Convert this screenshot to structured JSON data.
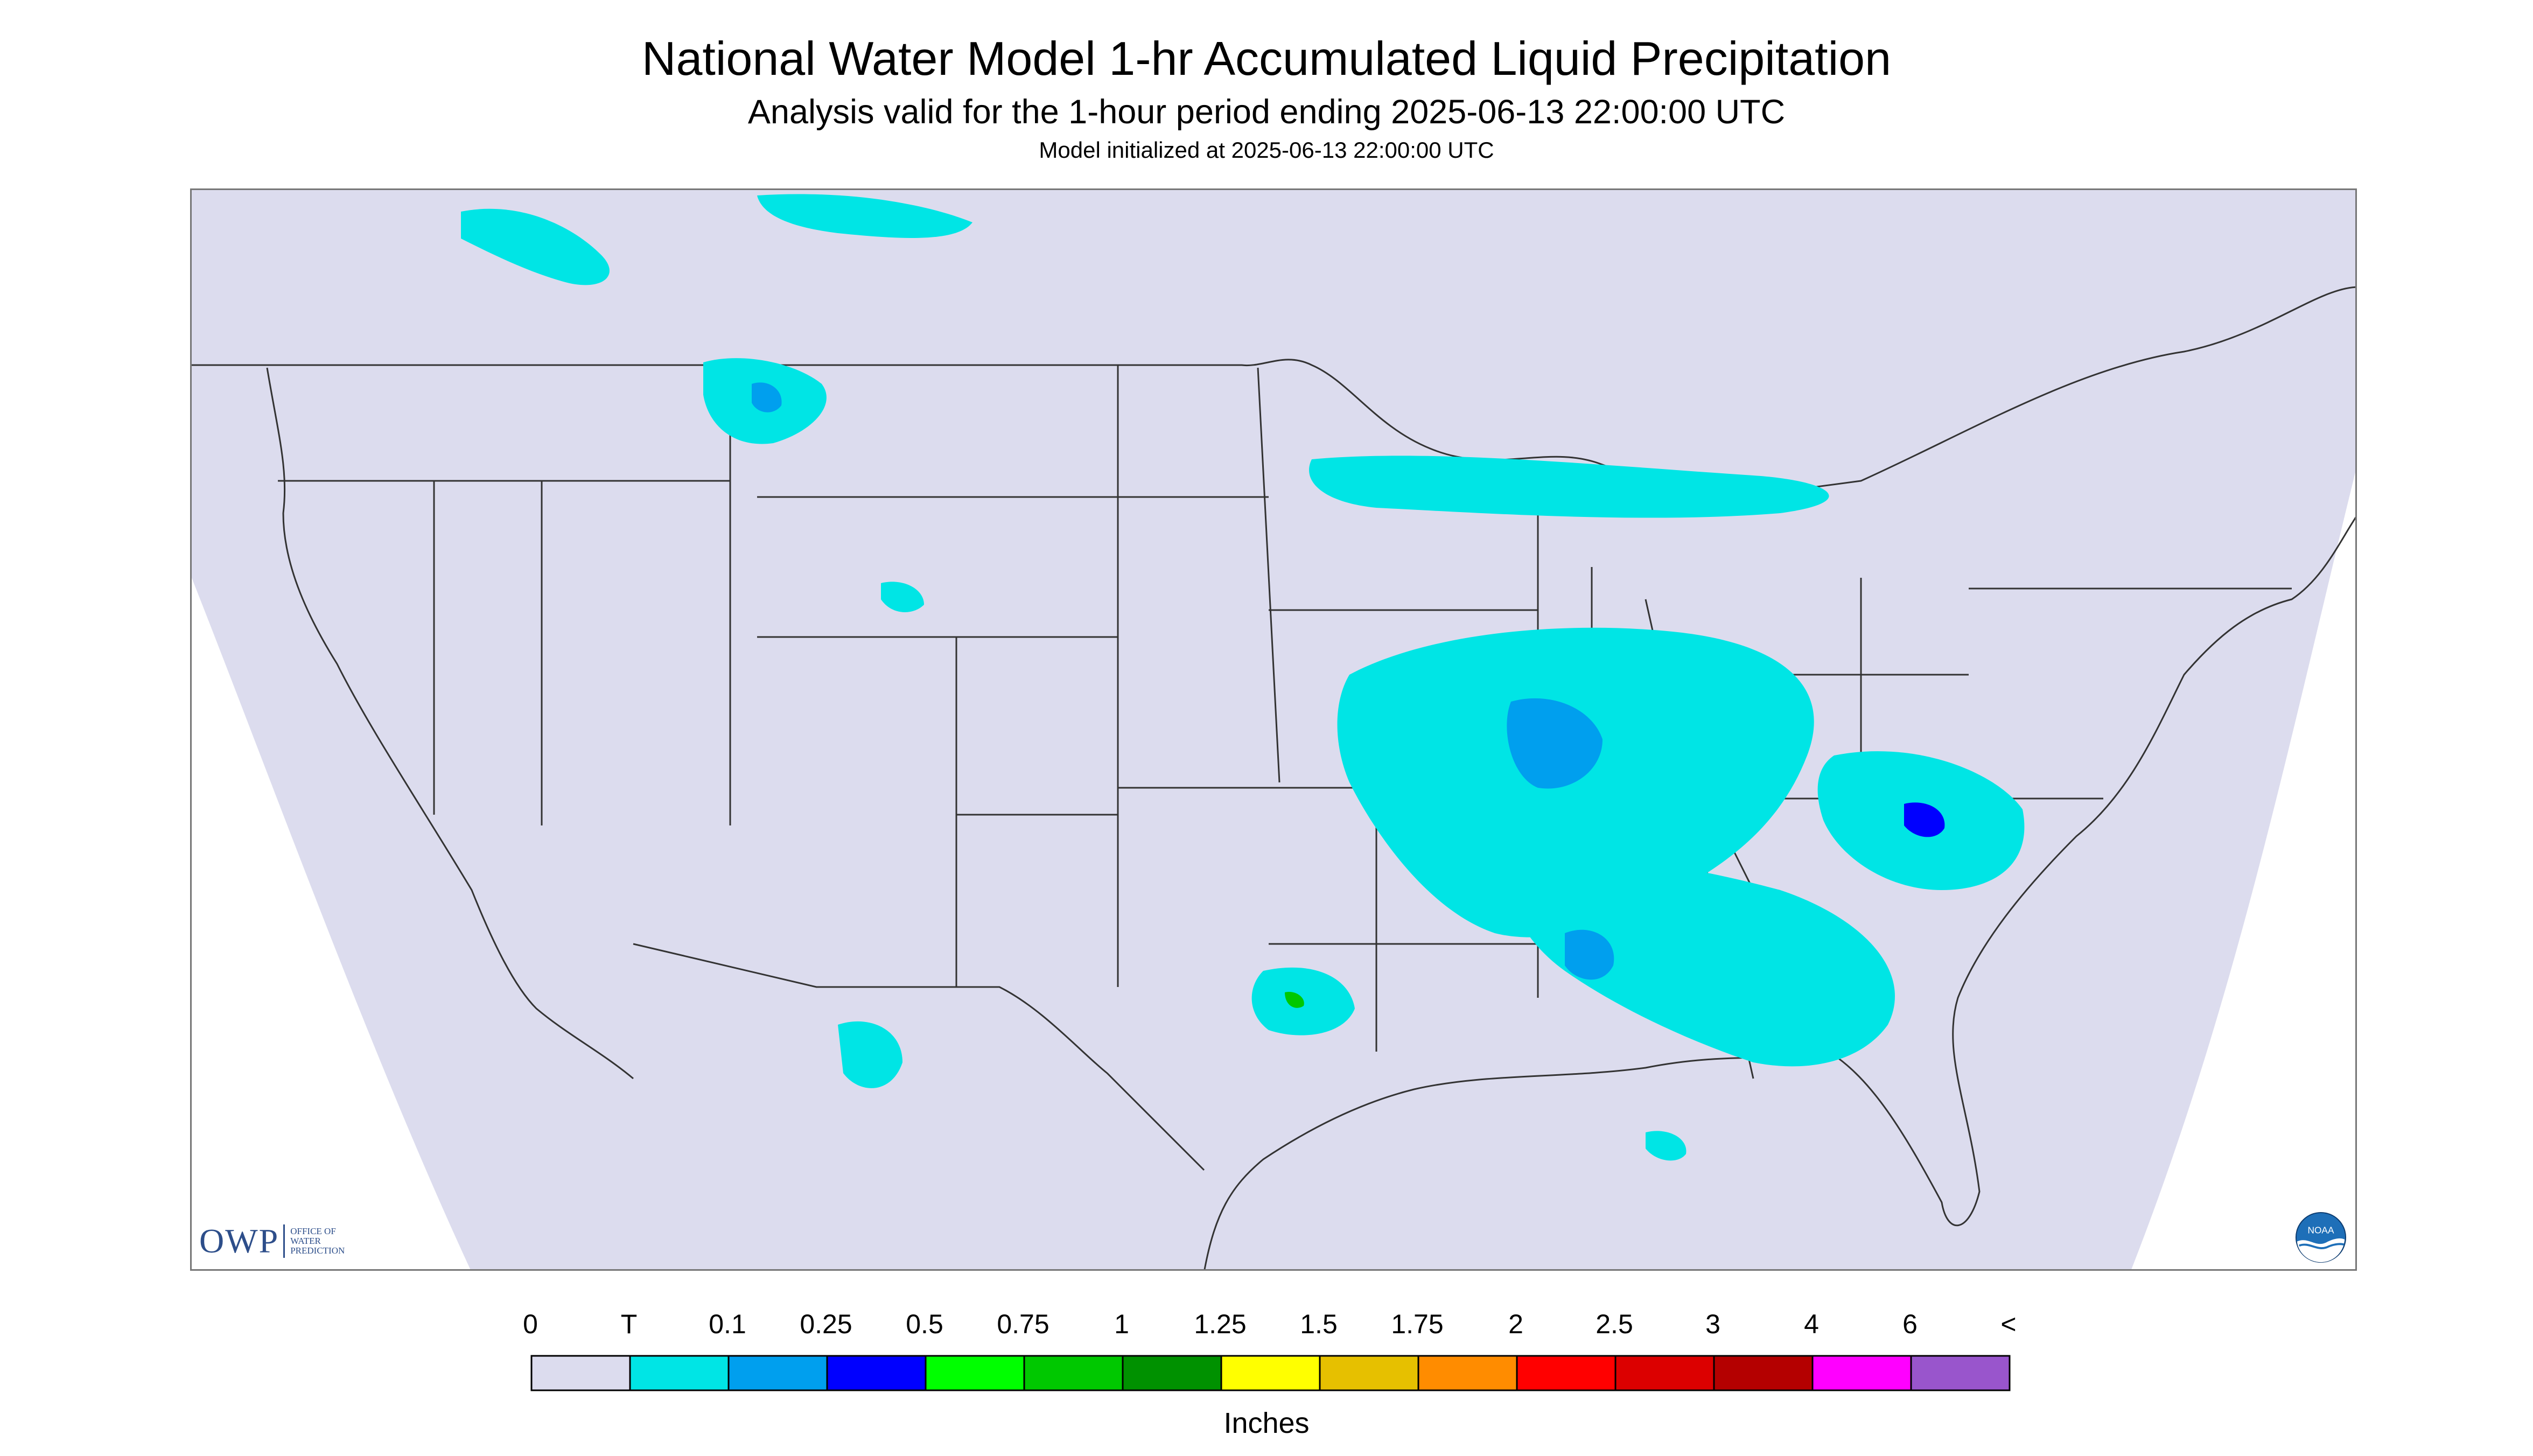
{
  "header": {
    "title": "National Water Model 1-hr Accumulated Liquid Precipitation",
    "subtitle": "Analysis valid for the 1-hour period ending 2025-06-13 22:00:00 UTC",
    "init_line": "Model initialized at 2025-06-13 22:00:00 UTC"
  },
  "map": {
    "region": "Contiguous United States",
    "background_color": "#dcdcee",
    "outside_domain_color": "#ffffff",
    "boundary_color": "#333333"
  },
  "logos": {
    "owp_text": "OWP",
    "owp_small": [
      "OFFICE OF",
      "WATER",
      "PREDICTION"
    ],
    "noaa_text": "NOAA"
  },
  "legend": {
    "units": "Inches",
    "labels": [
      "0",
      "T",
      "0.1",
      "0.25",
      "0.5",
      "0.75",
      "1",
      "1.25",
      "1.5",
      "1.75",
      "2",
      "2.5",
      "3",
      "4",
      "6",
      "<"
    ],
    "colors": [
      "#dcdcee",
      "#00e5e5",
      "#009fee",
      "#0000ff",
      "#00ff00",
      "#00c800",
      "#009100",
      "#ffff00",
      "#e6c000",
      "#ff8c00",
      "#ff0000",
      "#dc0000",
      "#b40000",
      "#ff00ff",
      "#9955cc"
    ]
  }
}
